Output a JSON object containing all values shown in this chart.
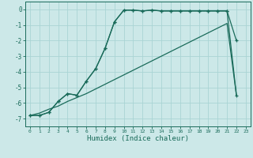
{
  "xlabel": "Humidex (Indice chaleur)",
  "bg_color": "#cce8e8",
  "grid_color": "#aad4d4",
  "line_color": "#1a6b5a",
  "xlim": [
    -0.5,
    23.5
  ],
  "ylim": [
    -7.5,
    0.5
  ],
  "xticks": [
    0,
    1,
    2,
    3,
    4,
    5,
    6,
    7,
    8,
    9,
    10,
    11,
    12,
    13,
    14,
    15,
    16,
    17,
    18,
    19,
    20,
    21,
    22,
    23
  ],
  "yticks": [
    0,
    -1,
    -2,
    -3,
    -4,
    -5,
    -6,
    -7
  ],
  "curve1_x": [
    0,
    1,
    2,
    3,
    4,
    5,
    6,
    7,
    8,
    9,
    10,
    11,
    12,
    13,
    14,
    15,
    16,
    17,
    18,
    19,
    20,
    21,
    22
  ],
  "curve1_y": [
    -6.8,
    -6.8,
    -6.6,
    -5.9,
    -5.4,
    -5.5,
    -4.6,
    -3.8,
    -2.5,
    -0.8,
    -0.05,
    -0.05,
    -0.1,
    -0.05,
    -0.1,
    -0.1,
    -0.1,
    -0.1,
    -0.1,
    -0.1,
    -0.1,
    -0.1,
    -2.0
  ],
  "curve2_x": [
    0,
    1,
    2,
    3,
    4,
    5,
    6,
    7,
    8,
    9,
    10,
    11,
    12,
    13,
    14,
    15,
    16,
    17,
    18,
    19,
    20,
    21,
    22
  ],
  "curve2_y": [
    -6.8,
    -6.8,
    -6.6,
    -5.9,
    -5.4,
    -5.5,
    -4.6,
    -3.8,
    -2.5,
    -0.8,
    -0.05,
    -0.05,
    -0.1,
    -0.05,
    -0.1,
    -0.1,
    -0.1,
    -0.1,
    -0.1,
    -0.1,
    -0.1,
    -0.1,
    -5.5
  ],
  "curve3_x": [
    0,
    1,
    2,
    3,
    4,
    5,
    6,
    7,
    8,
    9,
    10,
    11,
    12,
    13,
    14,
    15,
    16,
    17,
    18,
    19,
    20,
    21,
    22
  ],
  "curve3_y": [
    -6.8,
    -6.65,
    -6.4,
    -6.2,
    -5.9,
    -5.65,
    -5.4,
    -5.1,
    -4.8,
    -4.5,
    -4.2,
    -3.9,
    -3.6,
    -3.3,
    -3.0,
    -2.7,
    -2.4,
    -2.1,
    -1.8,
    -1.5,
    -1.2,
    -0.9,
    -5.5
  ]
}
